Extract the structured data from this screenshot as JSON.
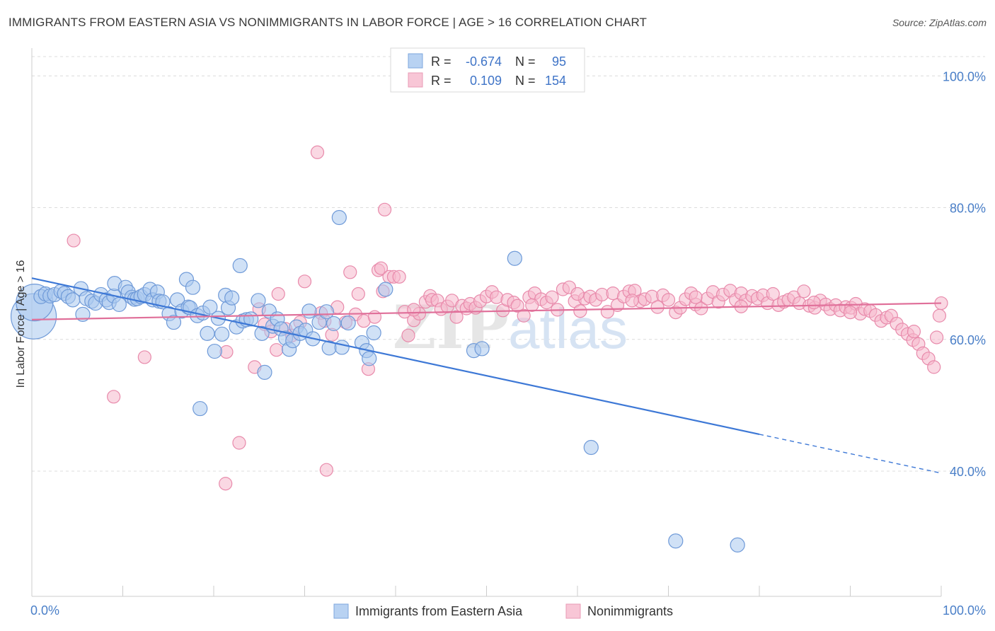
{
  "title": "IMMIGRANTS FROM EASTERN ASIA VS NONIMMIGRANTS IN LABOR FORCE | AGE > 16 CORRELATION CHART",
  "source": "Source: ZipAtlas.com",
  "watermark": {
    "zip": "ZIP",
    "atlas": "atlas"
  },
  "colors": {
    "blue": "#4a7fd4",
    "blue_fill": "#a9c8ef",
    "pink": "#e0709a",
    "pink_fill": "#f5b8cc",
    "tick": "#4a7fc8"
  },
  "chart_data": {
    "type": "scatter",
    "xlabel": "",
    "ylabel": "In Labor Force | Age > 16",
    "xlim": [
      0,
      100
    ],
    "ylim": [
      21,
      104
    ],
    "x_tick_labels": [
      "0.0%",
      "100.0%"
    ],
    "y_ticks": [
      40,
      60,
      80,
      100
    ],
    "y_tick_labels": [
      "40.0%",
      "60.0%",
      "80.0%",
      "100.0%"
    ],
    "grid": true,
    "legend_position": "top-center",
    "legend": [
      {
        "r_label": "R =",
        "r_value": "-0.674",
        "n_label": "N =",
        "n_value": "95"
      },
      {
        "r_label": "R =",
        "r_value": "0.109",
        "n_label": "N =",
        "n_value": "154"
      }
    ],
    "series": [
      {
        "name": "Immigrants from Eastern Asia",
        "color": "#4a7fd4",
        "trend": {
          "x0": 0,
          "y0": 69.3,
          "x1": 80,
          "y1": 45.6,
          "dash_to_x": 100,
          "dash_to_y": 39.7
        },
        "points": [
          [
            0.2,
            63.5,
            32
          ],
          [
            0.3,
            65.6,
            26
          ],
          [
            1,
            66.5,
            10
          ],
          [
            1.5,
            66.9,
            10
          ],
          [
            2,
            66.6,
            10
          ],
          [
            2.5,
            66.8,
            10
          ],
          [
            3.2,
            67.3,
            10
          ],
          [
            3.6,
            67.0,
            10
          ],
          [
            4,
            66.5,
            10
          ],
          [
            4.5,
            66.0,
            10
          ],
          [
            5.4,
            67.7,
            10
          ],
          [
            5.6,
            63.8,
            10
          ],
          [
            6,
            66.2,
            10
          ],
          [
            6.6,
            65.8,
            10
          ],
          [
            7,
            65.5,
            10
          ],
          [
            7.6,
            66.8,
            10
          ],
          [
            8.2,
            66.0,
            10
          ],
          [
            8.5,
            65.6,
            10
          ],
          [
            9,
            66.6,
            10
          ],
          [
            9.1,
            68.5,
            10
          ],
          [
            9.6,
            65.3,
            10
          ],
          [
            10.3,
            67.9,
            10
          ],
          [
            10.6,
            67.2,
            10
          ],
          [
            11,
            66.4,
            10
          ],
          [
            11.3,
            66.1,
            10
          ],
          [
            11.6,
            66.2,
            10
          ],
          [
            12,
            66.5,
            10
          ],
          [
            12.4,
            66.8,
            10
          ],
          [
            13,
            67.6,
            10
          ],
          [
            13.3,
            66.0,
            10
          ],
          [
            13.8,
            67.2,
            10
          ],
          [
            14,
            65.8,
            10
          ],
          [
            14.4,
            65.7,
            10
          ],
          [
            15.1,
            63.9,
            10
          ],
          [
            15.6,
            62.6,
            10
          ],
          [
            16,
            66.0,
            10
          ],
          [
            16.5,
            64.3,
            10
          ],
          [
            17,
            69.1,
            10
          ],
          [
            17.2,
            64.9,
            10
          ],
          [
            17.4,
            64.8,
            10
          ],
          [
            17.7,
            67.9,
            10
          ],
          [
            18.2,
            63.6,
            10
          ],
          [
            18.5,
            49.5,
            10
          ],
          [
            18.8,
            64.0,
            10
          ],
          [
            19.3,
            60.9,
            10
          ],
          [
            19.6,
            64.9,
            10
          ],
          [
            20.1,
            58.2,
            10
          ],
          [
            20.5,
            63.2,
            10
          ],
          [
            20.9,
            60.8,
            10
          ],
          [
            21.3,
            66.7,
            10
          ],
          [
            21.6,
            64.8,
            10
          ],
          [
            22,
            66.3,
            10
          ],
          [
            22.5,
            61.9,
            10
          ],
          [
            22.9,
            71.2,
            10
          ],
          [
            23.2,
            62.8,
            10
          ],
          [
            23.6,
            63.0,
            10
          ],
          [
            24.1,
            63.1,
            10
          ],
          [
            24.9,
            65.9,
            10
          ],
          [
            25.3,
            60.9,
            10
          ],
          [
            25.6,
            55.0,
            10
          ],
          [
            26.1,
            64.3,
            10
          ],
          [
            26.5,
            62.0,
            10
          ],
          [
            27,
            63.1,
            10
          ],
          [
            27.4,
            61.6,
            10
          ],
          [
            27.9,
            60.2,
            10
          ],
          [
            28.3,
            58.5,
            10
          ],
          [
            28.7,
            59.8,
            10
          ],
          [
            29.1,
            61.9,
            10
          ],
          [
            29.5,
            60.9,
            10
          ],
          [
            30.1,
            61.4,
            10
          ],
          [
            30.5,
            64.3,
            10
          ],
          [
            30.9,
            60.1,
            10
          ],
          [
            31.6,
            62.6,
            10
          ],
          [
            32.4,
            64.2,
            10
          ],
          [
            32.7,
            58.7,
            10
          ],
          [
            33.2,
            62.4,
            10
          ],
          [
            33.8,
            78.5,
            10
          ],
          [
            34.1,
            58.8,
            10
          ],
          [
            34.8,
            62.5,
            10
          ],
          [
            36.3,
            59.5,
            10
          ],
          [
            36.8,
            58.3,
            10
          ],
          [
            37.1,
            57.1,
            10
          ],
          [
            37.6,
            61.0,
            10
          ],
          [
            38.9,
            67.6,
            10
          ],
          [
            48.6,
            58.3,
            10
          ],
          [
            49.5,
            58.6,
            10
          ],
          [
            53.1,
            72.3,
            10
          ],
          [
            61.5,
            43.6,
            10
          ],
          [
            70.8,
            29.4,
            10
          ],
          [
            77.6,
            28.8,
            10
          ]
        ]
      },
      {
        "name": "Nonimmigrants",
        "color": "#e0709a",
        "trend": {
          "x0": 0,
          "y0": 63.0,
          "x1": 100,
          "y1": 65.5
        },
        "points": [
          [
            4.6,
            75.0
          ],
          [
            9,
            51.3
          ],
          [
            12.4,
            57.3
          ],
          [
            21.4,
            58.1
          ],
          [
            21.3,
            38.1
          ],
          [
            22.8,
            44.3
          ],
          [
            24.5,
            55.8
          ],
          [
            25,
            64.6
          ],
          [
            25.6,
            62.3
          ],
          [
            26.3,
            61.2
          ],
          [
            26.9,
            58.4
          ],
          [
            27.1,
            66.9
          ],
          [
            27.9,
            61.6
          ],
          [
            28.6,
            60.6
          ],
          [
            29.5,
            62.6
          ],
          [
            30,
            68.8
          ],
          [
            31.4,
            88.4
          ],
          [
            31.8,
            64.0
          ],
          [
            32.2,
            62.8
          ],
          [
            32.4,
            40.2
          ],
          [
            33,
            60.7
          ],
          [
            33.6,
            64.9
          ],
          [
            34.5,
            62.6
          ],
          [
            35,
            70.2
          ],
          [
            35.6,
            63.8
          ],
          [
            35.9,
            66.9
          ],
          [
            36.5,
            62.8
          ],
          [
            37,
            55.5
          ],
          [
            37.7,
            63.4
          ],
          [
            38.1,
            70.5
          ],
          [
            38.4,
            70.8
          ],
          [
            38.8,
            79.7
          ],
          [
            38.6,
            67.3
          ],
          [
            39.3,
            69.5
          ],
          [
            39.8,
            69.5
          ],
          [
            40.4,
            69.5
          ],
          [
            41,
            64.2
          ],
          [
            41.4,
            60.6
          ],
          [
            42,
            62.9
          ],
          [
            42.6,
            63.9
          ],
          [
            43.3,
            65.7
          ],
          [
            43.8,
            66.6
          ],
          [
            44,
            66.0
          ],
          [
            44.6,
            65.9
          ],
          [
            45,
            64.6
          ],
          [
            45.7,
            65.0
          ],
          [
            46.2,
            65.9
          ],
          [
            46.7,
            63.4
          ],
          [
            47.3,
            65.1
          ],
          [
            47.8,
            64.7
          ],
          [
            48.2,
            65.4
          ],
          [
            48.8,
            64.8
          ],
          [
            49.3,
            65.8
          ],
          [
            50,
            66.5
          ],
          [
            50.6,
            67.2
          ],
          [
            51.1,
            66.4
          ],
          [
            51.8,
            64.4
          ],
          [
            52.3,
            66.0
          ],
          [
            53,
            65.6
          ],
          [
            53.4,
            65.1
          ],
          [
            54.1,
            63.6
          ],
          [
            54.7,
            66.4
          ],
          [
            55.3,
            67.0
          ],
          [
            56,
            66.1
          ],
          [
            56.6,
            65.6
          ],
          [
            57.2,
            66.4
          ],
          [
            57.8,
            64.5
          ],
          [
            58.4,
            67.6
          ],
          [
            59.1,
            67.9
          ],
          [
            59.7,
            65.8
          ],
          [
            60.3,
            64.3
          ],
          [
            60.8,
            66.2
          ],
          [
            61.4,
            66.5
          ],
          [
            62,
            66.0
          ],
          [
            62.7,
            66.8
          ],
          [
            63.3,
            64.2
          ],
          [
            63.9,
            67.0
          ],
          [
            64.4,
            65.2
          ],
          [
            65.1,
            66.5
          ],
          [
            65.7,
            67.3
          ],
          [
            66.3,
            67.4
          ],
          [
            66.9,
            65.8
          ],
          [
            67.4,
            66.1
          ],
          [
            68.2,
            66.5
          ],
          [
            68.8,
            64.9
          ],
          [
            69.4,
            66.7
          ],
          [
            70,
            66.0
          ],
          [
            70.8,
            64.1
          ],
          [
            71.3,
            64.8
          ],
          [
            71.9,
            66.1
          ],
          [
            72.5,
            67.0
          ],
          [
            73,
            65.3
          ],
          [
            73.6,
            64.7
          ],
          [
            74.3,
            66.2
          ],
          [
            74.9,
            67.2
          ],
          [
            75.5,
            65.7
          ],
          [
            76,
            66.8
          ],
          [
            76.8,
            67.4
          ],
          [
            77.4,
            66.0
          ],
          [
            78,
            67.0
          ],
          [
            78.5,
            65.9
          ],
          [
            79.2,
            66.6
          ],
          [
            79.8,
            66.2
          ],
          [
            80.4,
            66.7
          ],
          [
            80.9,
            65.5
          ],
          [
            81.5,
            66.9
          ],
          [
            82.1,
            65.2
          ],
          [
            82.7,
            65.7
          ],
          [
            83.2,
            66.0
          ],
          [
            83.8,
            66.4
          ],
          [
            84.4,
            65.5
          ],
          [
            84.9,
            67.3
          ],
          [
            85.5,
            65.1
          ],
          [
            86.1,
            64.8
          ],
          [
            86.7,
            65.9
          ],
          [
            87.3,
            65.3
          ],
          [
            87.8,
            64.6
          ],
          [
            88.4,
            65.2
          ],
          [
            88.9,
            64.4
          ],
          [
            89.5,
            64.9
          ],
          [
            90.1,
            64.8
          ],
          [
            90.6,
            65.4
          ],
          [
            91.1,
            63.9
          ],
          [
            91.6,
            64.6
          ],
          [
            92.2,
            64.3
          ],
          [
            92.8,
            63.7
          ],
          [
            93.4,
            62.8
          ],
          [
            94,
            63.3
          ],
          [
            94.5,
            63.6
          ],
          [
            95.1,
            62.4
          ],
          [
            95.7,
            61.5
          ],
          [
            96.3,
            60.8
          ],
          [
            96.9,
            59.9
          ],
          [
            97.5,
            59.3
          ],
          [
            98,
            57.9
          ],
          [
            98.6,
            57.1
          ],
          [
            99.2,
            55.8
          ],
          [
            99.5,
            60.3
          ],
          [
            99.8,
            63.6
          ],
          [
            100,
            65.5
          ],
          [
            42,
            64.5
          ],
          [
            55,
            65.2
          ],
          [
            66,
            65.9
          ],
          [
            73,
            66.4
          ],
          [
            86,
            65.6
          ],
          [
            90,
            64.1
          ],
          [
            97,
            61.2
          ],
          [
            60,
            66.9
          ],
          [
            78,
            65.0
          ]
        ]
      }
    ]
  }
}
